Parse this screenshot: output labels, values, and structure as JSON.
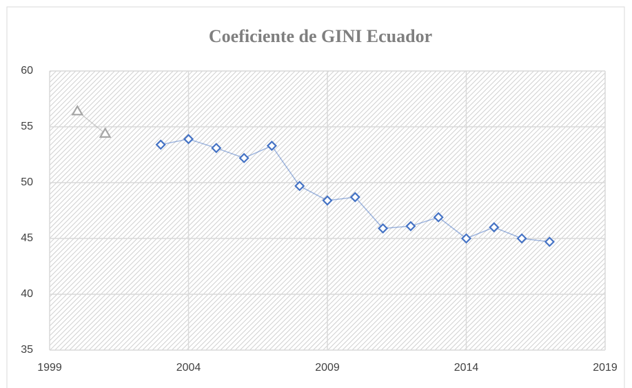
{
  "chart_data": {
    "type": "line",
    "title": "Coeficiente de GINI Ecuador",
    "series": [
      {
        "color": "#a5a5a5",
        "marker": "triangle",
        "x": [
          2000,
          2001
        ],
        "values": [
          56.4,
          54.4
        ]
      },
      {
        "color": "#4472c4",
        "marker": "diamond",
        "x": [
          2003,
          2004,
          2005,
          2006,
          2007,
          2008,
          2009,
          2010,
          2011,
          2012,
          2013,
          2014,
          2015,
          2016,
          2017
        ],
        "values": [
          53.4,
          53.9,
          53.1,
          52.2,
          53.3,
          49.7,
          48.4,
          48.7,
          45.9,
          46.1,
          46.9,
          45.0,
          46.0,
          45.0,
          44.7
        ]
      }
    ],
    "xlim": [
      1999,
      2019
    ],
    "xticks": [
      1999,
      2004,
      2009,
      2014,
      2019
    ],
    "ylim": [
      35,
      60
    ],
    "yticks": [
      35,
      40,
      45,
      50,
      55,
      60
    ],
    "grid": true
  }
}
